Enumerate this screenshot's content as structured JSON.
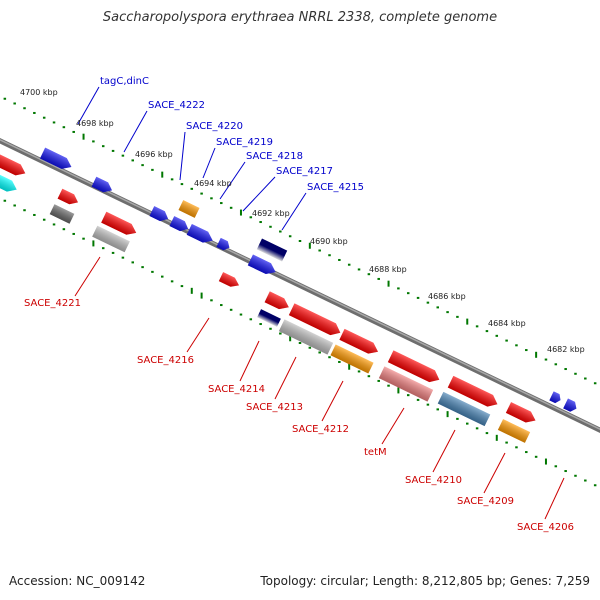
{
  "title": "Saccharopolyspora erythraea NRRL 2338, complete genome",
  "accession": "Accession: NC_009142",
  "summary": "Topology: circular; Length: 8,212,805 bp; Genes: 7,259",
  "colors": {
    "label_forward": "#0000cc",
    "label_reverse": "#cc0000",
    "tick": "#007700",
    "backbone": "#888888",
    "red": "#ff0000",
    "blue": "#1010ee",
    "orange": "#ff9900",
    "gray": "#bbbbbb",
    "darkgray": "#666666",
    "navy": "#000066",
    "salmon": "#f08080",
    "steelblue": "#4682b4",
    "cyan": "#00ffff"
  },
  "ticks": [
    {
      "label": "4700 kbp"
    },
    {
      "label": "4698 kbp"
    },
    {
      "label": "4696 kbp"
    },
    {
      "label": "4694 kbp"
    },
    {
      "label": "4692 kbp"
    },
    {
      "label": "4690 kbp"
    },
    {
      "label": "4688 kbp"
    },
    {
      "label": "4686 kbp"
    },
    {
      "label": "4684 kbp"
    },
    {
      "label": "4682 kbp"
    }
  ],
  "forward_labels": [
    {
      "text": "tagC,dinC"
    },
    {
      "text": "SACE_4222"
    },
    {
      "text": "SACE_4220"
    },
    {
      "text": "SACE_4219"
    },
    {
      "text": "SACE_4218"
    },
    {
      "text": "SACE_4217"
    },
    {
      "text": "SACE_4215"
    }
  ],
  "reverse_labels": [
    {
      "text": "SACE_4221"
    },
    {
      "text": "SACE_4216"
    },
    {
      "text": "SACE_4214"
    },
    {
      "text": "SACE_4213"
    },
    {
      "text": "SACE_4212"
    },
    {
      "text": "tetM"
    },
    {
      "text": "SACE_4210"
    },
    {
      "text": "SACE_4209"
    },
    {
      "text": "SACE_4206"
    }
  ]
}
